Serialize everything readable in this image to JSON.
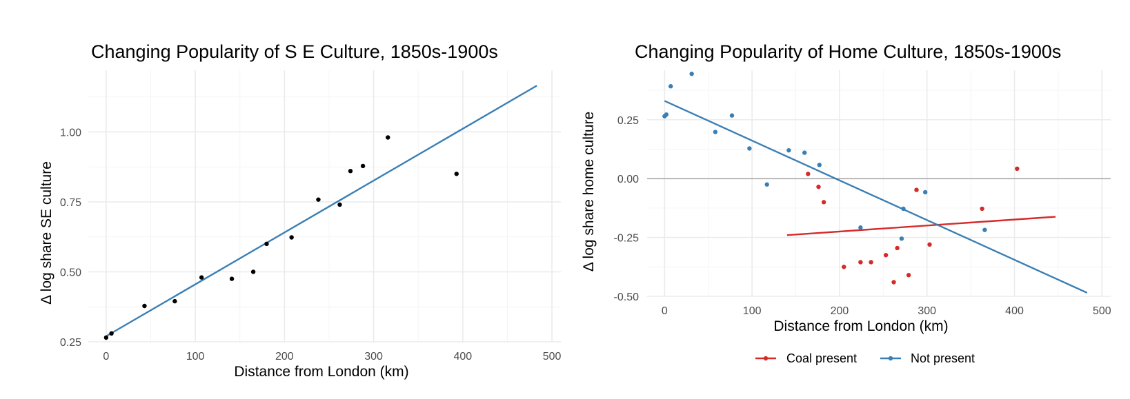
{
  "colors": {
    "point_default": "#000000",
    "line_default": "#3a7fb4",
    "coal": "#d62a2a",
    "not_present": "#3a7fb4",
    "zero_line": "#b3b3b3"
  },
  "chart_data": [
    {
      "type": "scatter",
      "title": "Changing Popularity of S E Culture, 1850s-1900s",
      "xlabel": "Distance from London (km)",
      "ylabel": "Δ log share SE culture",
      "xlim": [
        -20,
        510
      ],
      "ylim": [
        0.25,
        1.22
      ],
      "xticks": [
        0,
        100,
        200,
        300,
        400,
        500
      ],
      "xtick_labels": [
        "0",
        "100",
        "200",
        "300",
        "400",
        "500"
      ],
      "yticks": [
        0.25,
        0.5,
        0.75,
        1.0
      ],
      "ytick_labels": [
        "0.25",
        "0.50",
        "0.75",
        "1.00"
      ],
      "grid": true,
      "series": [
        {
          "points": [
            [
              0,
              0.265
            ],
            [
              6,
              0.28
            ],
            [
              43,
              0.378
            ],
            [
              77,
              0.395
            ],
            [
              107,
              0.48
            ],
            [
              141,
              0.475
            ],
            [
              165,
              0.5
            ],
            [
              180,
              0.6
            ],
            [
              208,
              0.623
            ],
            [
              238,
              0.758
            ],
            [
              262,
              0.74
            ],
            [
              274,
              0.86
            ],
            [
              288,
              0.878
            ],
            [
              316,
              0.98
            ],
            [
              393,
              0.85
            ]
          ],
          "fit_line": [
            [
              0,
              0.27
            ],
            [
              483,
              1.165
            ]
          ]
        }
      ]
    },
    {
      "type": "scatter",
      "title": "Changing Popularity of Home Culture, 1850s-1900s",
      "xlabel": "Distance from London (km)",
      "ylabel": "Δ log share home culture",
      "xlim": [
        -20,
        510
      ],
      "ylim": [
        -0.5,
        0.46
      ],
      "xticks": [
        0,
        100,
        200,
        300,
        400,
        500
      ],
      "xtick_labels": [
        "0",
        "100",
        "200",
        "300",
        "400",
        "500"
      ],
      "yticks": [
        0.25,
        0.0,
        -0.25,
        -0.5
      ],
      "ytick_labels": [
        "0.25",
        "0.00",
        "-0.25",
        "-0.50"
      ],
      "grid": true,
      "reference_line_y": 0,
      "legend": {
        "position": "bottom"
      },
      "series": [
        {
          "name": "Coal present",
          "points": [
            [
              164,
              0.02
            ],
            [
              176,
              -0.035
            ],
            [
              182,
              -0.1
            ],
            [
              205,
              -0.375
            ],
            [
              224,
              -0.355
            ],
            [
              236,
              -0.355
            ],
            [
              253,
              -0.325
            ],
            [
              262,
              -0.44
            ],
            [
              266,
              -0.295
            ],
            [
              279,
              -0.41
            ],
            [
              288,
              -0.048
            ],
            [
              303,
              -0.28
            ],
            [
              363,
              -0.128
            ],
            [
              403,
              0.042
            ]
          ],
          "fit_line": [
            [
              140,
              -0.24
            ],
            [
              447,
              -0.162
            ]
          ]
        },
        {
          "name": "Not present",
          "points": [
            [
              0,
              0.265
            ],
            [
              2,
              0.272
            ],
            [
              7,
              0.392
            ],
            [
              31,
              0.445
            ],
            [
              58,
              0.198
            ],
            [
              77,
              0.268
            ],
            [
              97,
              0.128
            ],
            [
              117,
              -0.025
            ],
            [
              142,
              0.12
            ],
            [
              160,
              0.11
            ],
            [
              177,
              0.058
            ],
            [
              224,
              -0.208
            ],
            [
              271,
              -0.255
            ],
            [
              273,
              -0.128
            ],
            [
              298,
              -0.058
            ],
            [
              366,
              -0.218
            ]
          ],
          "fit_line": [
            [
              0,
              0.33
            ],
            [
              483,
              -0.485
            ]
          ]
        }
      ]
    }
  ]
}
